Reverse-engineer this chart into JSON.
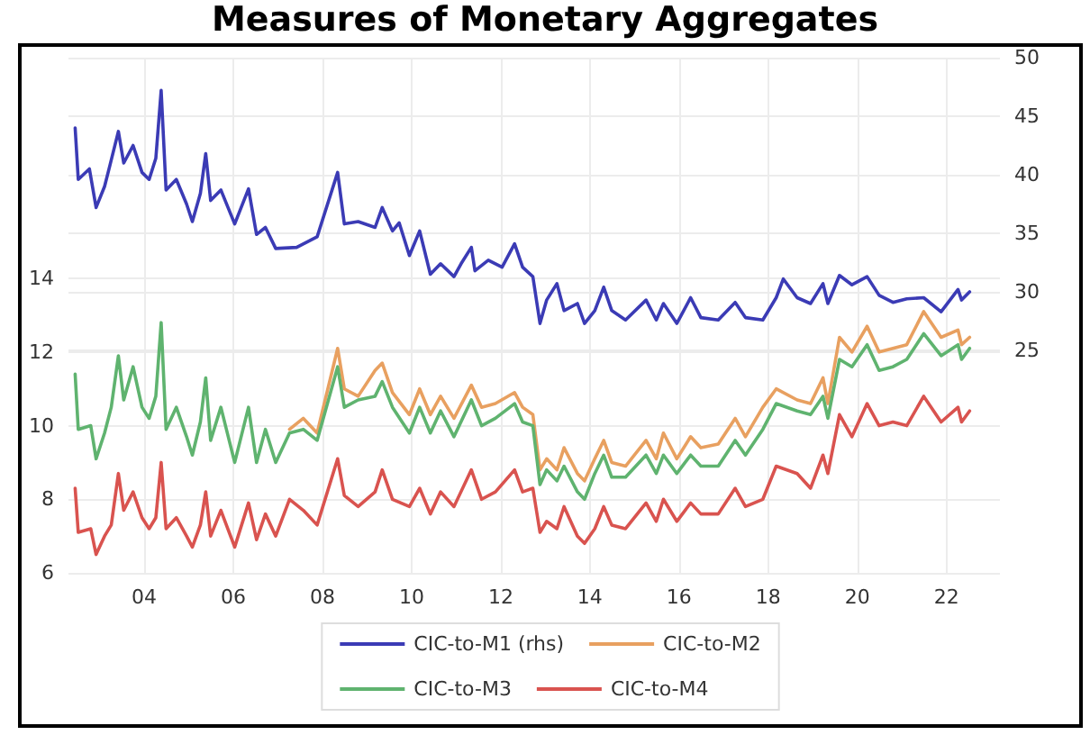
{
  "chart_data": {
    "type": "line",
    "title": "Measures of Monetary Aggregates",
    "xlim": [
      2002.3,
      2023.2
    ],
    "xticks": [
      {
        "value": 2004,
        "label": "04"
      },
      {
        "value": 2006,
        "label": "06"
      },
      {
        "value": 2008,
        "label": "08"
      },
      {
        "value": 2010,
        "label": "10"
      },
      {
        "value": 2012,
        "label": "12"
      },
      {
        "value": 2014,
        "label": "14"
      },
      {
        "value": 2016,
        "label": "16"
      },
      {
        "value": 2018,
        "label": "18"
      },
      {
        "value": 2020,
        "label": "20"
      },
      {
        "value": 2022,
        "label": "22"
      }
    ],
    "ylim": [
      6,
      20
    ],
    "yticks": [
      6,
      8,
      10,
      12,
      14
    ],
    "y2lim": [
      6,
      50
    ],
    "y2ticks": [
      25,
      30,
      35,
      40,
      45,
      50
    ],
    "grid": true,
    "legend": "bottom",
    "marker": "none",
    "line_style": "solid",
    "series": [
      {
        "name": "CIC-to-M1 (rhs)",
        "color": "#3b3bb5",
        "axis": "y2",
        "x": [
          2002.45,
          2002.52,
          2002.77,
          2002.92,
          2003.11,
          2003.23,
          2003.42,
          2003.54,
          2003.75,
          2003.95,
          2004.11,
          2004.26,
          2004.38,
          2004.49,
          2004.72,
          2004.95,
          2005.08,
          2005.26,
          2005.38,
          2005.49,
          2005.72,
          2006.03,
          2006.34,
          2006.52,
          2006.72,
          2006.95,
          2007.42,
          2007.88,
          2008.34,
          2008.49,
          2008.8,
          2009.18,
          2009.34,
          2009.57,
          2009.72,
          2009.95,
          2010.18,
          2010.42,
          2010.65,
          2010.95,
          2011.11,
          2011.34,
          2011.42,
          2011.72,
          2012.03,
          2012.31,
          2012.49,
          2012.72,
          2012.88,
          2013.03,
          2013.26,
          2013.42,
          2013.72,
          2013.88,
          2014.11,
          2014.31,
          2014.49,
          2014.8,
          2015.26,
          2015.49,
          2015.65,
          2015.95,
          2016.26,
          2016.49,
          2016.88,
          2017.26,
          2017.49,
          2017.88,
          2018.18,
          2018.34,
          2018.65,
          2018.95,
          2019.23,
          2019.34,
          2019.6,
          2019.88,
          2020.22,
          2020.49,
          2020.8,
          2021.11,
          2021.49,
          2021.88,
          2022.26,
          2022.34,
          2022.52
        ],
        "values": [
          44,
          39.6,
          40.5,
          37.2,
          39,
          40.8,
          43.7,
          41,
          42.5,
          40.2,
          39.6,
          41.4,
          47.2,
          38.7,
          39.6,
          37.5,
          36,
          38.4,
          41.8,
          37.8,
          38.7,
          35.8,
          38.8,
          34.9,
          35.5,
          33.7,
          33.8,
          34.7,
          40.2,
          35.8,
          36,
          35.5,
          37.2,
          35.2,
          35.9,
          33.1,
          35.2,
          31.5,
          32.4,
          31.3,
          32.4,
          33.8,
          31.8,
          32.7,
          32.1,
          34.1,
          32.1,
          31.3,
          27.3,
          29.3,
          30.7,
          28.4,
          29,
          27.3,
          28.4,
          30.4,
          28.4,
          27.6,
          29.3,
          27.6,
          29,
          27.3,
          29.5,
          27.8,
          27.6,
          29.1,
          27.8,
          27.6,
          29.5,
          31.1,
          29.5,
          29,
          30.7,
          29,
          31.4,
          30.6,
          31.3,
          29.7,
          29.1,
          29.4,
          29.5,
          28.3,
          30.2,
          29.3,
          30
        ]
      },
      {
        "name": "CIC-to-M2",
        "color": "#e8a060",
        "x": [
          2007.26,
          2007.57,
          2007.88,
          2008.34,
          2008.49,
          2008.8,
          2009.18,
          2009.34,
          2009.57,
          2009.95,
          2010.18,
          2010.42,
          2010.65,
          2010.95,
          2011.34,
          2011.57,
          2011.88,
          2012.31,
          2012.49,
          2012.72,
          2012.88,
          2013.03,
          2013.26,
          2013.42,
          2013.72,
          2013.88,
          2014.11,
          2014.31,
          2014.49,
          2014.8,
          2015.26,
          2015.49,
          2015.65,
          2015.95,
          2016.26,
          2016.49,
          2016.88,
          2017.26,
          2017.49,
          2017.88,
          2018.18,
          2018.65,
          2018.95,
          2019.23,
          2019.34,
          2019.6,
          2019.88,
          2020.22,
          2020.49,
          2020.8,
          2021.11,
          2021.49,
          2021.88,
          2022.26,
          2022.34,
          2022.52
        ],
        "values": [
          9.9,
          10.2,
          9.8,
          12.1,
          11.0,
          10.8,
          11.5,
          11.7,
          10.9,
          10.3,
          11.0,
          10.3,
          10.8,
          10.2,
          11.1,
          10.5,
          10.6,
          10.9,
          10.5,
          10.3,
          8.8,
          9.1,
          8.8,
          9.4,
          8.7,
          8.5,
          9.1,
          9.6,
          9,
          8.9,
          9.6,
          9.1,
          9.8,
          9.1,
          9.7,
          9.4,
          9.5,
          10.2,
          9.7,
          10.5,
          11.0,
          10.7,
          10.6,
          11.3,
          10.6,
          12.4,
          12,
          12.7,
          12,
          12.1,
          12.2,
          13.1,
          12.4,
          12.6,
          12.2,
          12.4
        ]
      },
      {
        "name": "CIC-to-M3",
        "color": "#5fb36f",
        "x": [
          2002.45,
          2002.52,
          2002.8,
          2002.92,
          2003.11,
          2003.26,
          2003.42,
          2003.54,
          2003.75,
          2003.95,
          2004.11,
          2004.26,
          2004.38,
          2004.49,
          2004.72,
          2004.95,
          2005.08,
          2005.26,
          2005.38,
          2005.49,
          2005.72,
          2006.03,
          2006.34,
          2006.52,
          2006.72,
          2006.95,
          2007.26,
          2007.57,
          2007.88,
          2008.34,
          2008.49,
          2008.8,
          2009.18,
          2009.34,
          2009.57,
          2009.95,
          2010.18,
          2010.42,
          2010.65,
          2010.95,
          2011.34,
          2011.57,
          2011.88,
          2012.31,
          2012.49,
          2012.72,
          2012.88,
          2013.03,
          2013.26,
          2013.42,
          2013.72,
          2013.88,
          2014.11,
          2014.31,
          2014.49,
          2014.8,
          2015.26,
          2015.49,
          2015.65,
          2015.95,
          2016.26,
          2016.49,
          2016.88,
          2017.26,
          2017.49,
          2017.88,
          2018.18,
          2018.65,
          2018.95,
          2019.23,
          2019.34,
          2019.6,
          2019.88,
          2020.22,
          2020.49,
          2020.8,
          2021.11,
          2021.49,
          2021.88,
          2022.26,
          2022.34,
          2022.52
        ],
        "values": [
          11.4,
          9.9,
          10,
          9.1,
          9.8,
          10.5,
          11.9,
          10.7,
          11.6,
          10.5,
          10.2,
          10.8,
          12.8,
          9.9,
          10.5,
          9.7,
          9.2,
          10.1,
          11.3,
          9.6,
          10.5,
          9,
          10.5,
          9,
          9.9,
          9,
          9.8,
          9.9,
          9.6,
          11.6,
          10.5,
          10.7,
          10.8,
          11.2,
          10.5,
          9.8,
          10.5,
          9.8,
          10.4,
          9.7,
          10.7,
          10,
          10.2,
          10.6,
          10.1,
          10,
          8.4,
          8.8,
          8.5,
          8.9,
          8.2,
          8,
          8.7,
          9.2,
          8.6,
          8.6,
          9.2,
          8.7,
          9.2,
          8.7,
          9.2,
          8.9,
          8.9,
          9.6,
          9.2,
          9.9,
          10.6,
          10.4,
          10.3,
          10.8,
          10.2,
          11.8,
          11.6,
          12.2,
          11.5,
          11.6,
          11.8,
          12.5,
          11.9,
          12.2,
          11.8,
          12.1
        ]
      },
      {
        "name": "CIC-to-M4",
        "color": "#d9534f",
        "x": [
          2002.45,
          2002.52,
          2002.8,
          2002.92,
          2003.11,
          2003.26,
          2003.42,
          2003.54,
          2003.75,
          2003.95,
          2004.11,
          2004.26,
          2004.38,
          2004.49,
          2004.72,
          2004.95,
          2005.08,
          2005.26,
          2005.38,
          2005.49,
          2005.72,
          2006.03,
          2006.34,
          2006.52,
          2006.72,
          2006.95,
          2007.26,
          2007.57,
          2007.88,
          2008.34,
          2008.49,
          2008.8,
          2009.18,
          2009.34,
          2009.57,
          2009.95,
          2010.18,
          2010.42,
          2010.65,
          2010.95,
          2011.34,
          2011.57,
          2011.88,
          2012.31,
          2012.49,
          2012.72,
          2012.88,
          2013.03,
          2013.26,
          2013.42,
          2013.72,
          2013.88,
          2014.11,
          2014.31,
          2014.49,
          2014.8,
          2015.26,
          2015.49,
          2015.65,
          2015.95,
          2016.26,
          2016.49,
          2016.88,
          2017.26,
          2017.49,
          2017.88,
          2018.18,
          2018.65,
          2018.95,
          2019.23,
          2019.34,
          2019.6,
          2019.88,
          2020.22,
          2020.49,
          2020.8,
          2021.11,
          2021.49,
          2021.88,
          2022.26,
          2022.34,
          2022.52
        ],
        "values": [
          8.3,
          7.1,
          7.2,
          6.5,
          7,
          7.3,
          8.7,
          7.7,
          8.2,
          7.5,
          7.2,
          7.5,
          9,
          7.2,
          7.5,
          7,
          6.7,
          7.3,
          8.2,
          7,
          7.7,
          6.7,
          7.9,
          6.9,
          7.6,
          7,
          8,
          7.7,
          7.3,
          9.1,
          8.1,
          7.8,
          8.2,
          8.8,
          8,
          7.8,
          8.3,
          7.6,
          8.2,
          7.8,
          8.8,
          8,
          8.2,
          8.8,
          8.2,
          8.3,
          7.1,
          7.4,
          7.2,
          7.8,
          7,
          6.8,
          7.2,
          7.8,
          7.3,
          7.2,
          7.9,
          7.4,
          8,
          7.4,
          7.9,
          7.6,
          7.6,
          8.3,
          7.8,
          8,
          8.9,
          8.7,
          8.3,
          9.2,
          8.7,
          10.3,
          9.7,
          10.6,
          10,
          10.1,
          10,
          10.8,
          10.1,
          10.5,
          10.1,
          10.4
        ]
      }
    ]
  }
}
